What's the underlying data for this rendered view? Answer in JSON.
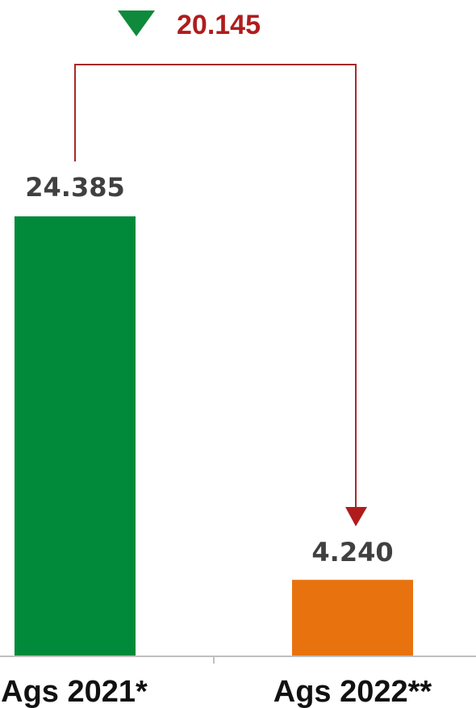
{
  "chart_data": {
    "type": "bar",
    "categories": [
      "Ags 2021*",
      "Ags 2022**"
    ],
    "values": [
      24385,
      4240
    ],
    "value_labels": [
      "24.385",
      "4.240"
    ],
    "ylim": [
      0,
      24385
    ],
    "bar_colors": [
      "#008a3a",
      "#e8720e"
    ],
    "annotation": {
      "text": "20.145",
      "value": 20145,
      "direction": "decrease",
      "indicator_color": "#0f8a3c",
      "text_color": "#b01c1c",
      "connector_color": "#a52a2a"
    },
    "value_label_color": "#404040",
    "category_label_color": "#111111",
    "axis_color": "#bfbfbf",
    "grid": false,
    "legend": "none"
  }
}
